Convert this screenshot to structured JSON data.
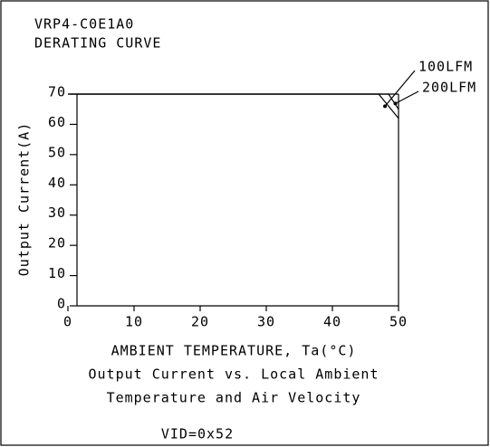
{
  "chart_data": {
    "type": "line",
    "title": "VRP4-C0E1A0",
    "subtitle": "DERATING CURVE",
    "xlabel": "AMBIENT TEMPERATURE, Ta(°C)",
    "ylabel": "Output Current(A)",
    "caption": [
      "Output Current vs. Local Ambient",
      "Temperature and Air Velocity"
    ],
    "footnote": "VID=0x52",
    "series": [
      {
        "name": "100LFM",
        "color": "#000000",
        "x": [
          0,
          47,
          50
        ],
        "values": [
          70,
          70,
          62
        ]
      },
      {
        "name": "200LFM",
        "color": "#000000",
        "x": [
          0,
          48.5,
          50
        ],
        "values": [
          70,
          70,
          65
        ]
      }
    ],
    "xlim": [
      0,
      50
    ],
    "xticks": [
      0,
      10,
      20,
      30,
      40,
      50
    ],
    "ylim": [
      0,
      70
    ],
    "yticks": [
      0,
      10,
      20,
      30,
      40,
      50,
      60,
      70
    ],
    "grid": false
  }
}
